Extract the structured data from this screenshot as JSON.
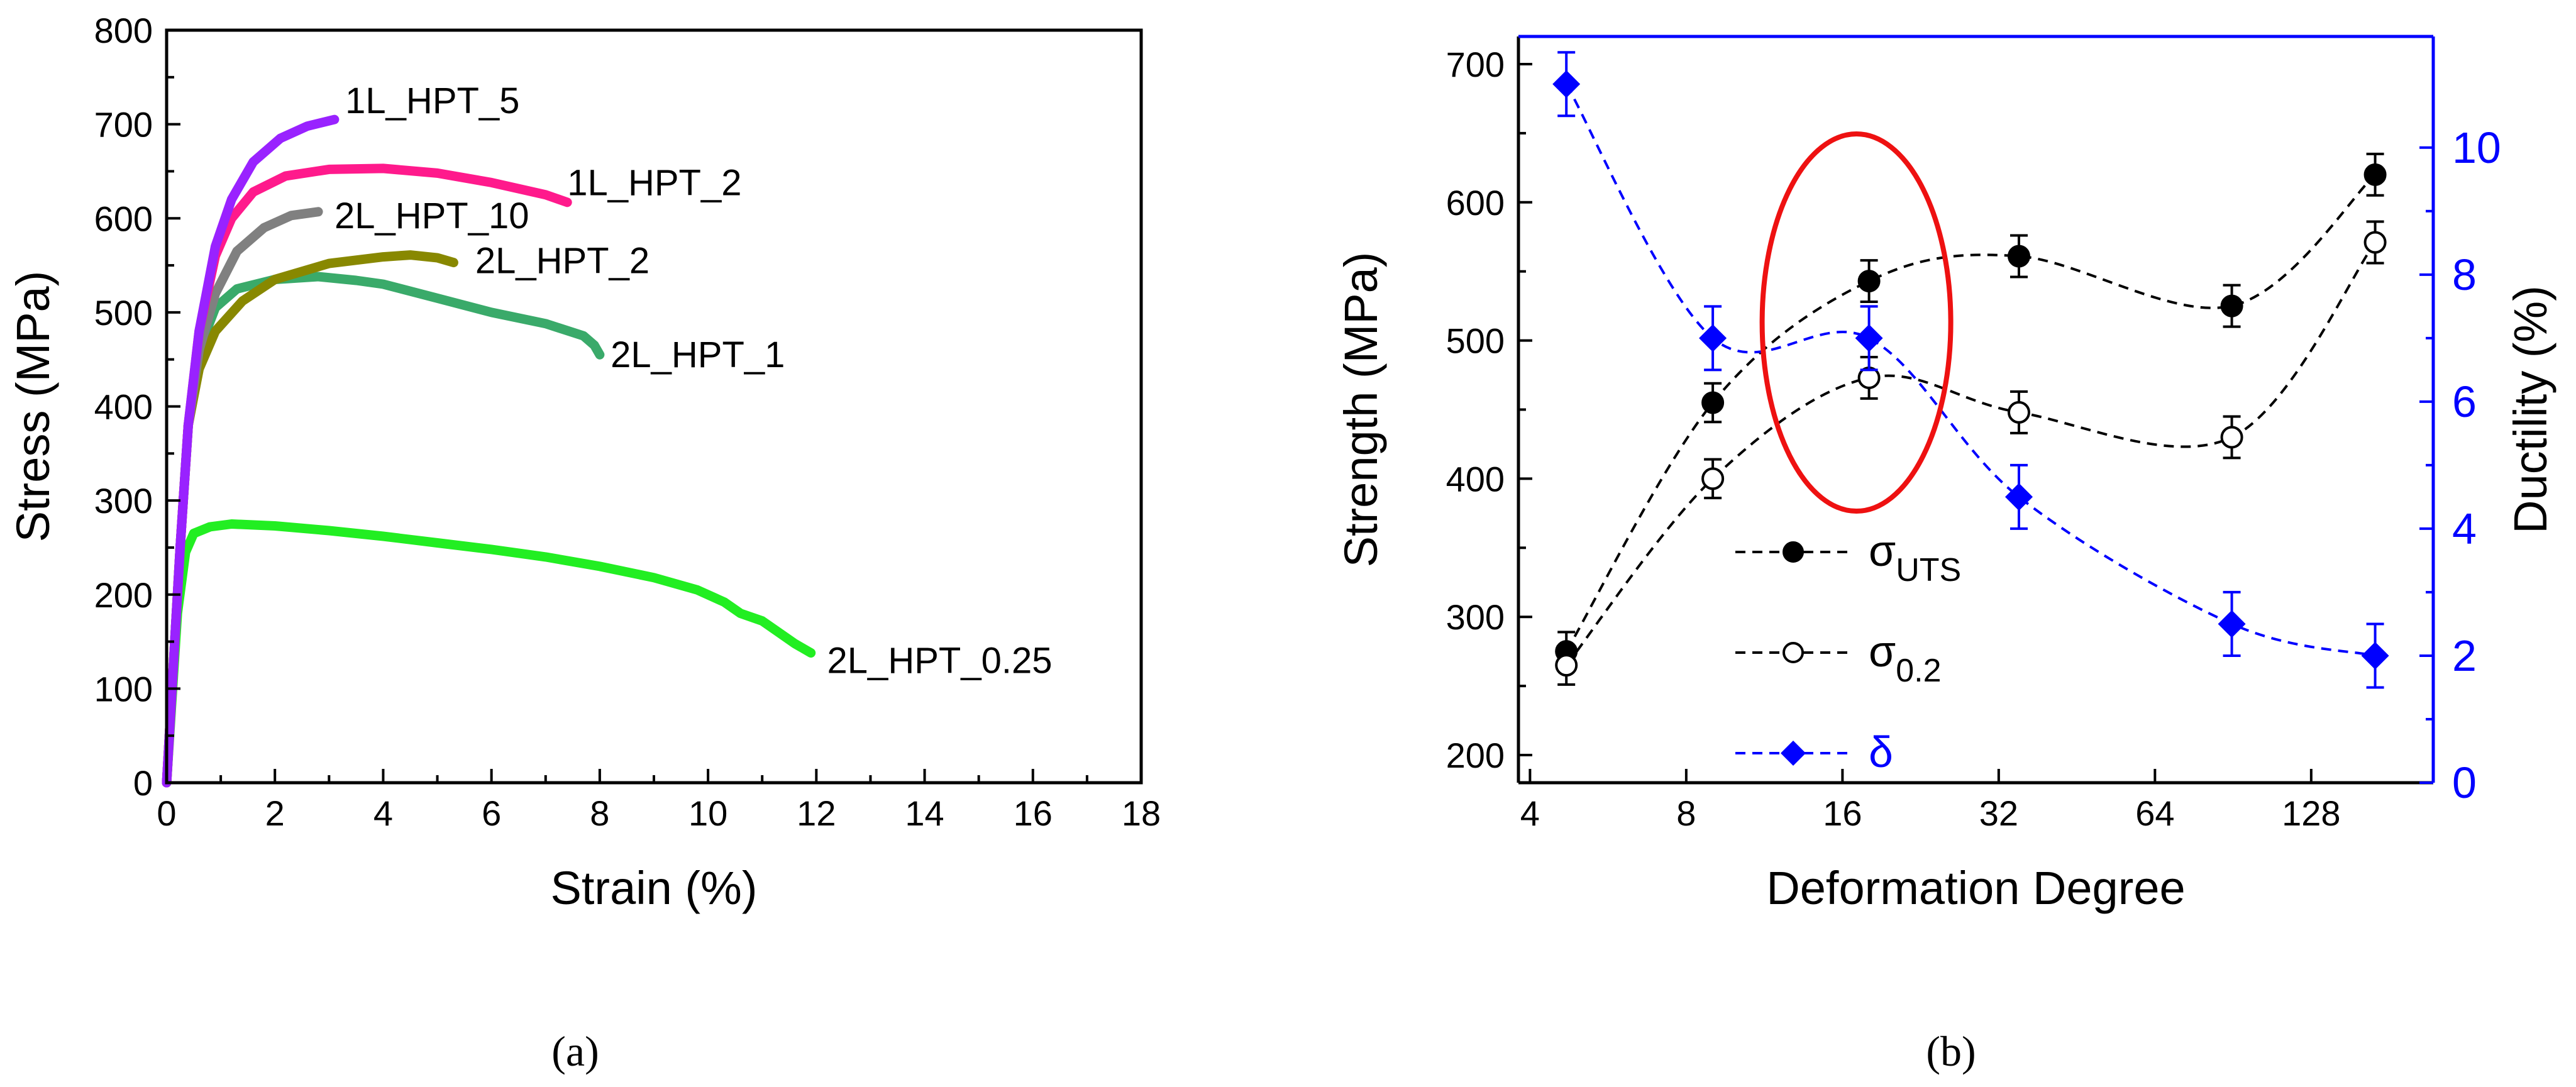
{
  "chart_data": [
    {
      "type": "line",
      "panel_label": "(a)",
      "xlabel": "Strain (%)",
      "ylabel": "Stress (MPa)",
      "xlim": [
        0,
        18
      ],
      "ylim": [
        0,
        800
      ],
      "x_ticks": [
        0,
        2,
        4,
        6,
        8,
        10,
        12,
        14,
        16,
        18
      ],
      "y_ticks": [
        0,
        100,
        200,
        300,
        400,
        500,
        600,
        700,
        800
      ],
      "series": [
        {
          "name": "2L_HPT_0.25",
          "color": "#22ee22",
          "label_anchor": [
            12.2,
            130
          ],
          "points": [
            [
              0,
              0
            ],
            [
              0.2,
              180
            ],
            [
              0.35,
              245
            ],
            [
              0.5,
              265
            ],
            [
              0.8,
              272
            ],
            [
              1.2,
              275
            ],
            [
              2,
              273
            ],
            [
              3,
              268
            ],
            [
              4,
              262
            ],
            [
              5,
              255
            ],
            [
              6,
              248
            ],
            [
              7,
              240
            ],
            [
              8,
              230
            ],
            [
              9,
              218
            ],
            [
              9.8,
              205
            ],
            [
              10.3,
              192
            ],
            [
              10.6,
              180
            ],
            [
              11,
              172
            ],
            [
              11.3,
              160
            ],
            [
              11.6,
              148
            ],
            [
              11.9,
              138
            ]
          ]
        },
        {
          "name": "2L_HPT_1",
          "color": "#3aaa6a",
          "label_anchor": [
            8.2,
            455
          ],
          "points": [
            [
              0,
              0
            ],
            [
              0.25,
              250
            ],
            [
              0.4,
              380
            ],
            [
              0.6,
              460
            ],
            [
              0.9,
              505
            ],
            [
              1.3,
              525
            ],
            [
              2,
              535
            ],
            [
              2.8,
              538
            ],
            [
              3.5,
              534
            ],
            [
              4,
              530
            ],
            [
              5,
              515
            ],
            [
              6,
              500
            ],
            [
              7,
              488
            ],
            [
              7.7,
              475
            ],
            [
              7.9,
              465
            ],
            [
              8,
              455
            ]
          ]
        },
        {
          "name": "2L_HPT_2",
          "color": "#888800",
          "label_anchor": [
            5.7,
            555
          ],
          "points": [
            [
              0,
              0
            ],
            [
              0.25,
              250
            ],
            [
              0.4,
              380
            ],
            [
              0.6,
              440
            ],
            [
              0.9,
              480
            ],
            [
              1.4,
              512
            ],
            [
              2,
              535
            ],
            [
              3,
              552
            ],
            [
              4,
              559
            ],
            [
              4.5,
              561
            ],
            [
              5,
              558
            ],
            [
              5.3,
              553
            ]
          ]
        },
        {
          "name": "2L_HPT_10",
          "color": "#808080",
          "label_anchor": [
            3.1,
            603
          ],
          "points": [
            [
              0,
              0
            ],
            [
              0.25,
              250
            ],
            [
              0.4,
              380
            ],
            [
              0.6,
              460
            ],
            [
              0.9,
              520
            ],
            [
              1.3,
              565
            ],
            [
              1.8,
              590
            ],
            [
              2.3,
              603
            ],
            [
              2.8,
              607
            ]
          ]
        },
        {
          "name": "1L_HPT_2",
          "color": "#ff1a8c",
          "label_anchor": [
            7.4,
            638
          ],
          "points": [
            [
              0,
              0
            ],
            [
              0.25,
              250
            ],
            [
              0.4,
              380
            ],
            [
              0.6,
              480
            ],
            [
              0.9,
              560
            ],
            [
              1.2,
              600
            ],
            [
              1.6,
              628
            ],
            [
              2.2,
              645
            ],
            [
              3,
              652
            ],
            [
              4,
              653
            ],
            [
              5,
              648
            ],
            [
              6,
              638
            ],
            [
              7,
              625
            ],
            [
              7.4,
              617
            ]
          ]
        },
        {
          "name": "1L_HPT_5",
          "color": "#9922ff",
          "label_anchor": [
            3.3,
            725
          ],
          "points": [
            [
              0,
              0
            ],
            [
              0.25,
              250
            ],
            [
              0.4,
              380
            ],
            [
              0.6,
              480
            ],
            [
              0.9,
              570
            ],
            [
              1.2,
              620
            ],
            [
              1.6,
              660
            ],
            [
              2.1,
              685
            ],
            [
              2.6,
              698
            ],
            [
              3.1,
              705
            ]
          ]
        }
      ]
    },
    {
      "type": "scatter",
      "panel_label": "(b)",
      "xlabel": "Deformation Degree",
      "ylabel": "Strength (MPa)",
      "y2label": "Ductility (%)",
      "x_scale": "log2",
      "xlim": [
        3.8,
        220
      ],
      "ylim": [
        180,
        720
      ],
      "y2lim": [
        0,
        11.75
      ],
      "x_ticks": [
        4,
        8,
        16,
        32,
        64,
        128
      ],
      "y_ticks": [
        200,
        300,
        400,
        500,
        600,
        700
      ],
      "y2_ticks": [
        0,
        2,
        4,
        6,
        8,
        10
      ],
      "x": [
        4.7,
        9,
        18,
        35,
        90,
        170
      ],
      "series": [
        {
          "name": "σ_UTS",
          "axis": "left",
          "marker": "filled-circle",
          "color": "#000000",
          "values": [
            275,
            455,
            543,
            561,
            525,
            620
          ],
          "errors": [
            14,
            14,
            15,
            15,
            15,
            15
          ]
        },
        {
          "name": "σ_0.2",
          "axis": "left",
          "marker": "open-circle",
          "color": "#000000",
          "values": [
            265,
            400,
            473,
            448,
            430,
            571
          ],
          "errors": [
            14,
            14,
            15,
            15,
            15,
            15
          ]
        },
        {
          "name": "δ",
          "axis": "right",
          "marker": "diamond",
          "color": "#0000ff",
          "values": [
            11,
            7,
            7,
            4.5,
            2.5,
            2
          ],
          "errors": [
            0.5,
            0.5,
            0.5,
            0.5,
            0.5,
            0.5
          ]
        }
      ],
      "legend": [
        {
          "text": "σ",
          "sub": "UTS",
          "color": "#000000",
          "marker": "filled-circle"
        },
        {
          "text": "σ",
          "sub": "0.2",
          "color": "#000000",
          "marker": "open-circle"
        },
        {
          "text": "δ",
          "sub": "",
          "color": "#0000ff",
          "marker": "diamond"
        }
      ],
      "annotation": "red ellipse highlighting the data near deformation degree 18",
      "accent_color": "#0000ff",
      "highlight_color": "#ee1111"
    }
  ]
}
